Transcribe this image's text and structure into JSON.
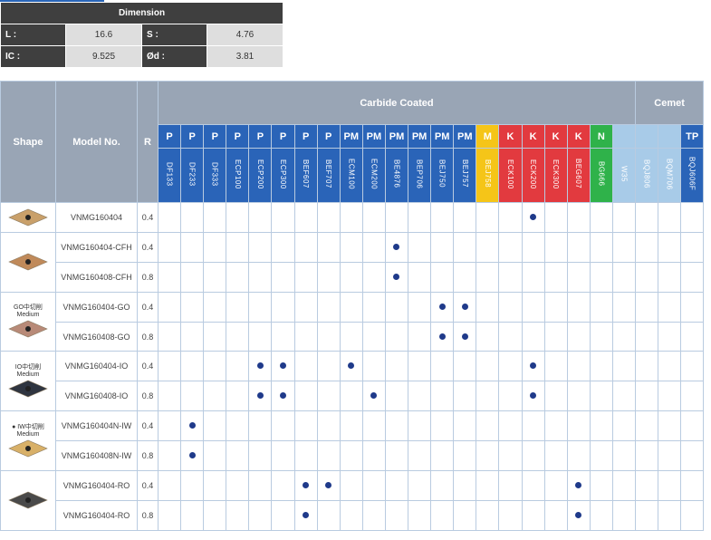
{
  "dimension": {
    "title": "Dimension",
    "rows": [
      {
        "l1": "L :",
        "v1": "16.6",
        "l2": "S :",
        "v2": "4.76"
      },
      {
        "l1": "IC :",
        "v1": "9.525",
        "l2": "Ød :",
        "v2": "3.81"
      }
    ]
  },
  "table": {
    "shape_header": "Shape",
    "model_header": "Model No.",
    "r_header": "R",
    "carbide_header": "Carbide Coated",
    "cermet_header": "Cemet",
    "classes": [
      "P",
      "P",
      "P",
      "P",
      "P",
      "P",
      "P",
      "P",
      "PM",
      "PM",
      "PM",
      "PM",
      "PM",
      "PM",
      "M",
      "K",
      "K",
      "K",
      "K",
      "N",
      "",
      "",
      "",
      "TP"
    ],
    "grades": [
      "DF133",
      "DF233",
      "DF333",
      "ECP100",
      "ECP200",
      "ECP300",
      "BEF607",
      "BEF707",
      "ECM100",
      "ECM200",
      "BE4876",
      "BEP706",
      "BEJ750",
      "BEJ757",
      "BEJ758",
      "ECK100",
      "ECK200",
      "ECK300",
      "BEG607",
      "BG666",
      "W35",
      "BQJ806",
      "BQM706",
      "BQJ606F"
    ],
    "colors": {
      "blue": "#2a64b8",
      "yellow": "#f5c518",
      "red": "#e23a3f",
      "green": "#2fb24a",
      "light": "#a8cbe8",
      "dot": "#1f3a8a"
    },
    "rows": [
      {
        "model": "VNMG160404",
        "r": "0.4",
        "dots": [
          16
        ]
      },
      {
        "model": "VNMG160404-CFH",
        "r": "0.4",
        "dots": [
          10
        ]
      },
      {
        "model": "VNMG160408-CFH",
        "r": "0.8",
        "dots": [
          10
        ]
      },
      {
        "model": "VNMG160404-GO",
        "r": "0.4",
        "dots": [
          12,
          13
        ]
      },
      {
        "model": "VNMG160408-GO",
        "r": "0.8",
        "dots": [
          12,
          13
        ]
      },
      {
        "model": "VNMG160404-IO",
        "r": "0.4",
        "dots": [
          4,
          5,
          8,
          16
        ]
      },
      {
        "model": "VNMG160408-IO",
        "r": "0.8",
        "dots": [
          4,
          5,
          9,
          16
        ]
      },
      {
        "model": "VNMG160404N-IW",
        "r": "0.4",
        "dots": [
          1
        ]
      },
      {
        "model": "VNMG160408N-IW",
        "r": "0.8",
        "dots": [
          1
        ]
      },
      {
        "model": "VNMG160404-RO",
        "r": "0.4",
        "dots": [
          6,
          7,
          18
        ]
      },
      {
        "model": "VNMG160404-RO",
        "r": "0.8",
        "dots": [
          6,
          18
        ]
      }
    ],
    "shapes": [
      {
        "rows": 1,
        "note": [],
        "color": "#c9a06a",
        "icon": "gold-insert-icon"
      },
      {
        "rows": 2,
        "note": [],
        "color": "#c08a5a",
        "icon": "bronze-insert-icon"
      },
      {
        "rows": 2,
        "note": [
          "GO中切削",
          "Medium"
        ],
        "color": "#b88a78",
        "icon": "pink-insert-icon"
      },
      {
        "rows": 2,
        "note": [
          "IO中切削",
          "Medium"
        ],
        "color": "#2f3540",
        "icon": "dark-insert-icon"
      },
      {
        "rows": 2,
        "note": [
          "● IW中切削",
          "Medium"
        ],
        "color": "#d8b068",
        "icon": "yellow-insert-icon"
      },
      {
        "rows": 2,
        "note": [],
        "color": "#4a4a4a",
        "icon": "black-insert-icon"
      }
    ]
  }
}
